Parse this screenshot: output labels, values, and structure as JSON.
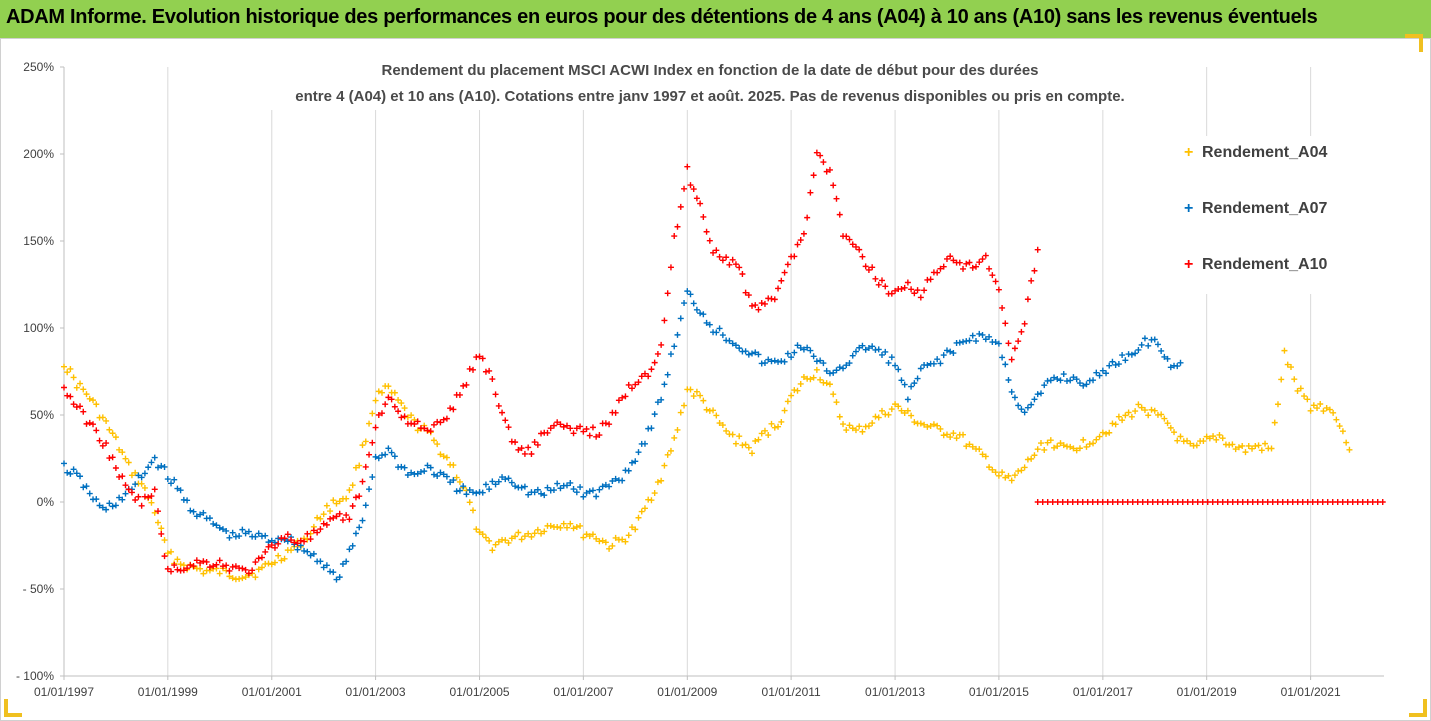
{
  "page_title": "ADAM Informe. Evolution historique des performances en euros pour des détentions de 4 ans (A04) à 10 ans (A10) sans les revenus éventuels",
  "colors": {
    "banner": "#92d050",
    "A04": "#ffc000",
    "A07": "#0070c0",
    "A10": "#ff0000",
    "grid": "#d9d9d9",
    "text": "#404040"
  },
  "chart_data": {
    "type": "scatter",
    "title_line1": "Rendement du placement MSCI ACWI Index en fonction de la date de début pour des durées",
    "title_line2": "entre 4 (A04) et 10 ans (A10). Cotations entre janv 1997 et août. 2025. Pas de revenus disponibles ou pris en compte.",
    "ylim": [
      -1.0,
      2.5
    ],
    "xlim": [
      "1997-01-01",
      "2022-06-01"
    ],
    "y_ticks": [
      {
        "value": 2.5,
        "label": "250%"
      },
      {
        "value": 2.0,
        "label": "200%"
      },
      {
        "value": 1.5,
        "label": "150%"
      },
      {
        "value": 1.0,
        "label": "100%"
      },
      {
        "value": 0.5,
        "label": "50%"
      },
      {
        "value": 0.0,
        "label": "0%"
      },
      {
        "value": -0.5,
        "label": "- 50%"
      },
      {
        "value": -1.0,
        "label": "- 100%"
      }
    ],
    "x_ticks": [
      {
        "value": "1997-01-01",
        "label": "01/01/1997"
      },
      {
        "value": "1999-01-01",
        "label": "01/01/1999"
      },
      {
        "value": "2001-01-01",
        "label": "01/01/2001"
      },
      {
        "value": "2003-01-01",
        "label": "01/01/2003"
      },
      {
        "value": "2005-01-01",
        "label": "01/01/2005"
      },
      {
        "value": "2007-01-01",
        "label": "01/01/2007"
      },
      {
        "value": "2009-01-01",
        "label": "01/01/2009"
      },
      {
        "value": "2011-01-01",
        "label": "01/01/2011"
      },
      {
        "value": "2013-01-01",
        "label": "01/01/2013"
      },
      {
        "value": "2015-01-01",
        "label": "01/01/2015"
      },
      {
        "value": "2017-01-01",
        "label": "01/01/2017"
      },
      {
        "value": "2019-01-01",
        "label": "01/01/2019"
      },
      {
        "value": "2021-01-01",
        "label": "01/01/2021"
      }
    ],
    "legend_position": "right",
    "grid": "vertical",
    "series": [
      {
        "name": "Rendement_A04",
        "color": "#ffc000",
        "x": [
          "1997-01-01",
          "1997-04-01",
          "1997-07-01",
          "1997-10-01",
          "1998-01-01",
          "1998-04-01",
          "1998-07-01",
          "1998-10-01",
          "1999-01-01",
          "1999-04-01",
          "1999-07-01",
          "1999-10-01",
          "2000-01-01",
          "2000-04-01",
          "2000-07-01",
          "2000-10-01",
          "2001-01-01",
          "2001-04-01",
          "2001-07-01",
          "2001-10-01",
          "2002-01-01",
          "2002-04-01",
          "2002-07-01",
          "2002-10-01",
          "2003-01-01",
          "2003-04-01",
          "2003-07-01",
          "2003-10-01",
          "2004-01-01",
          "2004-04-01",
          "2004-07-01",
          "2004-10-01",
          "2005-01-01",
          "2005-04-01",
          "2005-07-01",
          "2005-10-01",
          "2006-01-01",
          "2006-04-01",
          "2006-07-01",
          "2006-10-01",
          "2007-01-01",
          "2007-04-01",
          "2007-07-01",
          "2007-10-01",
          "2008-01-01",
          "2008-04-01",
          "2008-07-01",
          "2008-10-01",
          "2009-01-01",
          "2009-04-01",
          "2009-07-01",
          "2009-10-01",
          "2010-01-01",
          "2010-04-01",
          "2010-07-01",
          "2010-10-01",
          "2011-01-01",
          "2011-04-01",
          "2011-07-01",
          "2011-10-01",
          "2012-01-01",
          "2012-04-01",
          "2012-07-01",
          "2012-10-01",
          "2013-01-01",
          "2013-04-01",
          "2013-07-01",
          "2013-10-01",
          "2014-01-01",
          "2014-04-01",
          "2014-07-01",
          "2014-10-01",
          "2015-01-01",
          "2015-04-01",
          "2015-07-01",
          "2015-10-01",
          "2016-01-01",
          "2016-04-01",
          "2016-07-01",
          "2016-10-01",
          "2017-01-01",
          "2017-04-01",
          "2017-07-01",
          "2017-10-01",
          "2018-01-01",
          "2018-04-01",
          "2018-07-01",
          "2018-10-01",
          "2019-01-01",
          "2019-04-01",
          "2019-07-01",
          "2019-10-01",
          "2020-01-01",
          "2020-04-01",
          "2020-07-01",
          "2020-10-01",
          "2021-01-01",
          "2021-04-01",
          "2021-07-01",
          "2021-10-01"
        ],
        "values": [
          0.8,
          0.68,
          0.6,
          0.48,
          0.35,
          0.2,
          0.1,
          -0.05,
          -0.3,
          -0.35,
          -0.38,
          -0.4,
          -0.4,
          -0.42,
          -0.42,
          -0.4,
          -0.35,
          -0.3,
          -0.25,
          -0.18,
          -0.05,
          0.0,
          0.05,
          0.3,
          0.6,
          0.65,
          0.55,
          0.45,
          0.4,
          0.3,
          0.2,
          0.05,
          -0.2,
          -0.25,
          -0.22,
          -0.2,
          -0.18,
          -0.15,
          -0.13,
          -0.12,
          -0.18,
          -0.2,
          -0.25,
          -0.22,
          -0.15,
          0.0,
          0.15,
          0.35,
          0.65,
          0.6,
          0.5,
          0.4,
          0.35,
          0.3,
          0.4,
          0.45,
          0.6,
          0.7,
          0.75,
          0.65,
          0.45,
          0.4,
          0.45,
          0.5,
          0.55,
          0.5,
          0.45,
          0.42,
          0.4,
          0.38,
          0.3,
          0.25,
          0.15,
          0.12,
          0.2,
          0.3,
          0.35,
          0.3,
          0.32,
          0.35,
          0.4,
          0.45,
          0.5,
          0.55,
          0.5,
          0.45,
          0.35,
          0.3,
          0.35,
          0.38,
          0.32,
          0.3,
          0.32,
          0.3,
          0.85,
          0.65,
          0.55,
          0.55,
          0.5,
          0.3
        ]
      },
      {
        "name": "Rendement_A07",
        "color": "#0070c0",
        "x": [
          "1997-01-01",
          "1997-04-01",
          "1997-07-01",
          "1997-10-01",
          "1998-01-01",
          "1998-04-01",
          "1998-07-01",
          "1998-10-01",
          "1999-01-01",
          "1999-04-01",
          "1999-07-01",
          "1999-10-01",
          "2000-01-01",
          "2000-04-01",
          "2000-07-01",
          "2000-10-01",
          "2001-01-01",
          "2001-04-01",
          "2001-07-01",
          "2001-10-01",
          "2002-01-01",
          "2002-04-01",
          "2002-07-01",
          "2002-10-01",
          "2003-01-01",
          "2003-04-01",
          "2003-07-01",
          "2003-10-01",
          "2004-01-01",
          "2004-04-01",
          "2004-07-01",
          "2004-10-01",
          "2005-01-01",
          "2005-04-01",
          "2005-07-01",
          "2005-10-01",
          "2006-01-01",
          "2006-04-01",
          "2006-07-01",
          "2006-10-01",
          "2007-01-01",
          "2007-04-01",
          "2007-07-01",
          "2007-10-01",
          "2008-01-01",
          "2008-04-01",
          "2008-07-01",
          "2008-10-01",
          "2009-01-01",
          "2009-04-01",
          "2009-07-01",
          "2009-10-01",
          "2010-01-01",
          "2010-04-01",
          "2010-07-01",
          "2010-10-01",
          "2011-01-01",
          "2011-04-01",
          "2011-07-01",
          "2011-10-01",
          "2012-01-01",
          "2012-04-01",
          "2012-07-01",
          "2012-10-01",
          "2013-01-01",
          "2013-04-01",
          "2013-07-01",
          "2013-10-01",
          "2014-01-01",
          "2014-04-01",
          "2014-07-01",
          "2014-10-01",
          "2015-01-01",
          "2015-04-01",
          "2015-07-01",
          "2015-10-01",
          "2016-01-01",
          "2016-04-01",
          "2016-07-01",
          "2016-10-01",
          "2017-01-01",
          "2017-04-01",
          "2017-07-01",
          "2017-10-01",
          "2018-01-01",
          "2018-04-01",
          "2018-07-01"
        ],
        "values": [
          0.2,
          0.15,
          0.05,
          -0.05,
          0.0,
          0.05,
          0.15,
          0.25,
          0.15,
          0.05,
          -0.05,
          -0.1,
          -0.15,
          -0.2,
          -0.18,
          -0.2,
          -0.22,
          -0.2,
          -0.25,
          -0.3,
          -0.35,
          -0.45,
          -0.3,
          -0.1,
          0.25,
          0.3,
          0.2,
          0.15,
          0.2,
          0.15,
          0.1,
          0.05,
          0.05,
          0.1,
          0.15,
          0.1,
          0.05,
          0.05,
          0.08,
          0.1,
          0.05,
          0.05,
          0.1,
          0.15,
          0.25,
          0.4,
          0.6,
          0.9,
          1.2,
          1.1,
          1.0,
          0.95,
          0.9,
          0.85,
          0.8,
          0.8,
          0.85,
          0.9,
          0.8,
          0.75,
          0.78,
          0.85,
          0.9,
          0.85,
          0.8,
          0.6,
          0.75,
          0.8,
          0.85,
          0.9,
          0.95,
          0.95,
          0.9,
          0.65,
          0.5,
          0.6,
          0.7,
          0.72,
          0.7,
          0.68,
          0.75,
          0.8,
          0.85,
          0.9,
          0.95,
          0.8,
          0.8
        ]
      },
      {
        "name": "Rendement_A10",
        "color": "#ff0000",
        "x": [
          "1997-01-01",
          "1997-04-01",
          "1997-07-01",
          "1997-10-01",
          "1998-01-01",
          "1998-04-01",
          "1998-07-01",
          "1998-10-01",
          "1999-01-01",
          "1999-04-01",
          "1999-07-01",
          "1999-10-01",
          "2000-01-01",
          "2000-04-01",
          "2000-07-01",
          "2000-10-01",
          "2001-01-01",
          "2001-04-01",
          "2001-07-01",
          "2001-10-01",
          "2002-01-01",
          "2002-04-01",
          "2002-07-01",
          "2002-10-01",
          "2003-01-01",
          "2003-04-01",
          "2003-07-01",
          "2003-10-01",
          "2004-01-01",
          "2004-04-01",
          "2004-07-01",
          "2004-10-01",
          "2005-01-01",
          "2005-04-01",
          "2005-07-01",
          "2005-10-01",
          "2006-01-01",
          "2006-04-01",
          "2006-07-01",
          "2006-10-01",
          "2007-01-01",
          "2007-04-01",
          "2007-07-01",
          "2007-10-01",
          "2008-01-01",
          "2008-04-01",
          "2008-07-01",
          "2008-10-01",
          "2009-01-01",
          "2009-04-01",
          "2009-07-01",
          "2009-10-01",
          "2010-01-01",
          "2010-04-01",
          "2010-07-01",
          "2010-10-01",
          "2011-01-01",
          "2011-04-01",
          "2011-07-01",
          "2011-10-01",
          "2012-01-01",
          "2012-04-01",
          "2012-07-01",
          "2012-10-01",
          "2013-01-01",
          "2013-04-01",
          "2013-07-01",
          "2013-10-01",
          "2014-01-01",
          "2014-04-01",
          "2014-07-01",
          "2014-10-01",
          "2015-01-01",
          "2015-04-01",
          "2015-07-01",
          "2015-10-01"
        ],
        "values": [
          0.65,
          0.55,
          0.45,
          0.35,
          0.2,
          0.05,
          0.0,
          0.05,
          -0.4,
          -0.38,
          -0.35,
          -0.35,
          -0.35,
          -0.38,
          -0.4,
          -0.35,
          -0.25,
          -0.2,
          -0.22,
          -0.2,
          -0.15,
          -0.1,
          -0.08,
          0.1,
          0.45,
          0.6,
          0.5,
          0.45,
          0.4,
          0.45,
          0.55,
          0.7,
          0.85,
          0.7,
          0.45,
          0.3,
          0.3,
          0.4,
          0.45,
          0.4,
          0.42,
          0.4,
          0.45,
          0.6,
          0.7,
          0.75,
          0.9,
          1.5,
          1.9,
          1.7,
          1.45,
          1.4,
          1.35,
          1.1,
          1.15,
          1.2,
          1.4,
          1.55,
          2.0,
          1.9,
          1.55,
          1.45,
          1.35,
          1.25,
          1.2,
          1.25,
          1.2,
          1.3,
          1.4,
          1.35,
          1.35,
          1.4,
          1.2,
          0.8,
          1.05,
          1.45
        ]
      },
      {
        "name": "Rendement_A10 (0%)",
        "color": "#ff0000",
        "x": [
          "2015-10-01",
          "2022-06-01"
        ],
        "values": [
          0.0,
          0.0
        ]
      }
    ]
  }
}
